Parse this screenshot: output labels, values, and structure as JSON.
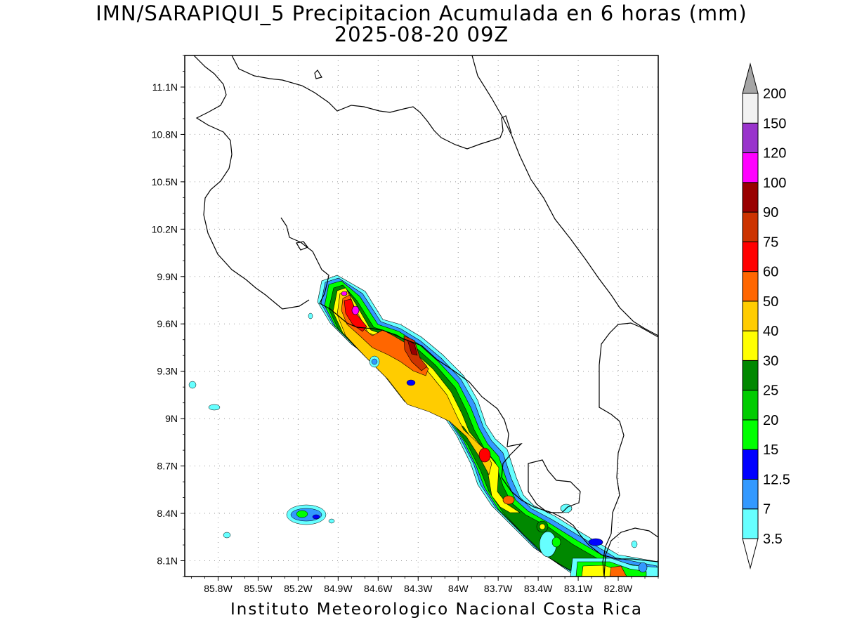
{
  "title": {
    "line1": "IMN/SARAPIQUI_5 Precipitacion Acumulada en 6 horas (mm)",
    "line2": "2025-08-20 09Z"
  },
  "footer": "Instituto Meteorologico Nacional Costa Rica",
  "map": {
    "lon_range": [
      -86.05,
      -82.5
    ],
    "lat_range": [
      8.0,
      11.3
    ],
    "grid": true,
    "lon_ticks": [
      {
        "value": -85.8,
        "label": "85.8W"
      },
      {
        "value": -85.5,
        "label": "85.5W"
      },
      {
        "value": -85.2,
        "label": "85.2W"
      },
      {
        "value": -84.9,
        "label": "84.9W"
      },
      {
        "value": -84.6,
        "label": "84.6W"
      },
      {
        "value": -84.3,
        "label": "84.3W"
      },
      {
        "value": -84.0,
        "label": "84W"
      },
      {
        "value": -83.7,
        "label": "83.7W"
      },
      {
        "value": -83.4,
        "label": "83.4W"
      },
      {
        "value": -83.1,
        "label": "83.1W"
      },
      {
        "value": -82.8,
        "label": "82.8W"
      }
    ],
    "lat_ticks": [
      {
        "value": 8.1,
        "label": "8.1N"
      },
      {
        "value": 8.4,
        "label": "8.4N"
      },
      {
        "value": 8.7,
        "label": "8.7N"
      },
      {
        "value": 9.0,
        "label": "9N"
      },
      {
        "value": 9.3,
        "label": "9.3N"
      },
      {
        "value": 9.6,
        "label": "9.6N"
      },
      {
        "value": 9.9,
        "label": "9.9N"
      },
      {
        "value": 10.2,
        "label": "10.2N"
      },
      {
        "value": 10.5,
        "label": "10.5N"
      },
      {
        "value": 10.8,
        "label": "10.8N"
      },
      {
        "value": 11.1,
        "label": "11.1N"
      }
    ]
  },
  "colorbar": {
    "under_color": "#ffffff",
    "over_color": "#a6a6a6",
    "levels": [
      {
        "label": "3.5",
        "color": "#66ffff"
      },
      {
        "label": "7",
        "color": "#3399ff"
      },
      {
        "label": "12.5",
        "color": "#0000ff"
      },
      {
        "label": "15",
        "color": "#00ff00"
      },
      {
        "label": "20",
        "color": "#00cc00"
      },
      {
        "label": "25",
        "color": "#008800"
      },
      {
        "label": "30",
        "color": "#ffff00"
      },
      {
        "label": "40",
        "color": "#ffcc00"
      },
      {
        "label": "50",
        "color": "#ff6600"
      },
      {
        "label": "60",
        "color": "#ff0000"
      },
      {
        "label": "75",
        "color": "#cc3300"
      },
      {
        "label": "90",
        "color": "#990000"
      },
      {
        "label": "100",
        "color": "#ff00ff"
      },
      {
        "label": "120",
        "color": "#9933cc"
      },
      {
        "label": "150",
        "color": "#f2f2f2"
      },
      {
        "label": "200",
        "color": null
      }
    ]
  }
}
